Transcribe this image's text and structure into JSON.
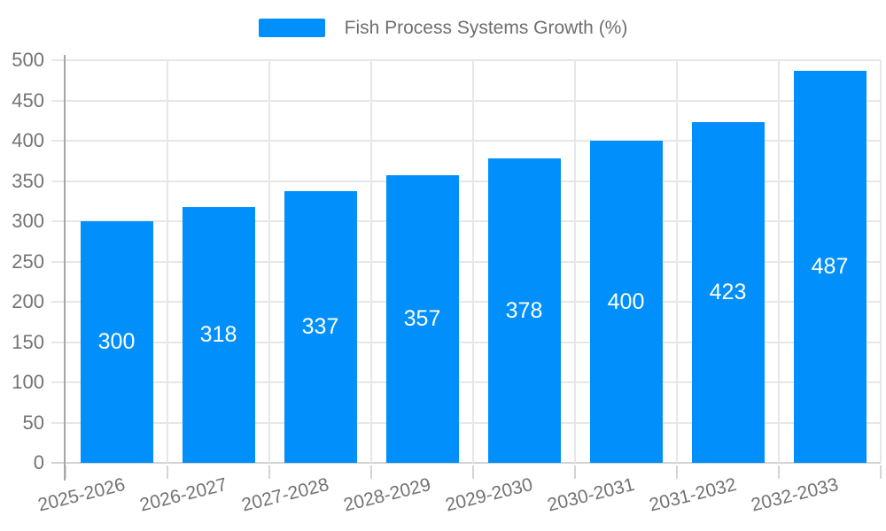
{
  "chart_data": {
    "type": "bar",
    "title": "",
    "legend": "Fish Process Systems Growth (%)",
    "legend_position": "top",
    "categories": [
      "2025-2026",
      "2026-2027",
      "2027-2028",
      "2028-2029",
      "2029-2030",
      "2030-2031",
      "2031-2032",
      "2032-2033"
    ],
    "values": [
      300,
      318,
      337,
      357,
      378,
      400,
      423,
      487
    ],
    "xlabel": "",
    "ylabel": "",
    "ylim": [
      0,
      500
    ],
    "ytick_step": 50,
    "yticks": [
      0,
      50,
      100,
      150,
      200,
      250,
      300,
      350,
      400,
      450,
      500
    ],
    "grid": true,
    "colors": {
      "bar": "#008FFB",
      "data_label": "#ffffff",
      "axis_text": "#737373",
      "legend_text": "#6e6e6e",
      "gridline": "#e7e7e7",
      "zero_line": "#d4d4d4",
      "y_axis_line": "#a6a6a6",
      "background": "#ffffff"
    }
  }
}
